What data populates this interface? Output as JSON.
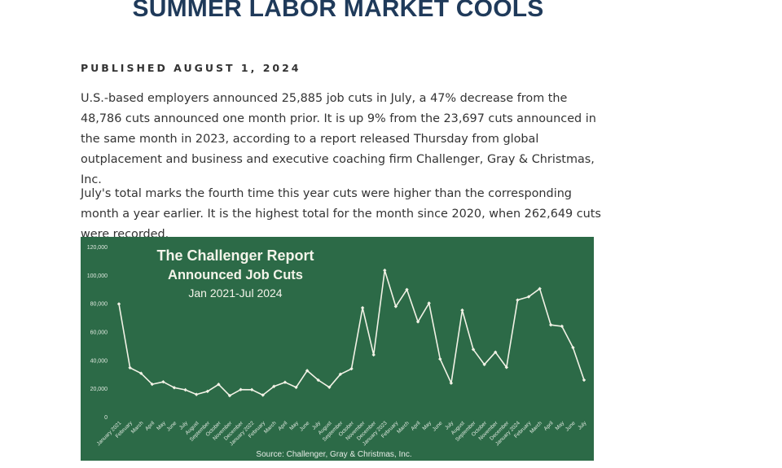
{
  "article": {
    "headline": "SUMMER LABOR MARKET COOLS",
    "dateline": "PUBLISHED AUGUST 1, 2024",
    "paragraphs": [
      "U.S.-based employers announced 25,885 job cuts in July, a 47% decrease from the 48,786 cuts announced one month prior. It is up 9% from the 23,697 cuts announced in the same month in 2023, according to a report released Thursday from global outplacement and business and executive coaching firm Challenger, Gray & Christmas, Inc.",
      "July's total marks the fourth time this year cuts were higher than the corresponding month a year earlier. It is the highest total for the month since 2020, when 262,649 cuts were recorded."
    ]
  },
  "chart_data": {
    "type": "line",
    "title": "The Challenger Report",
    "subtitle": "Announced Job Cuts",
    "period": "Jan 2021-Jul 2024",
    "source": "Source: Challenger, Gray & Christmas, Inc.",
    "background_color": "#2c6a47",
    "line_color": "#f2f2e6",
    "ylim": [
      0,
      120000
    ],
    "y_ticks": [
      "0",
      "20,000",
      "40,000",
      "60,000",
      "80,000",
      "100,000",
      "120,000"
    ],
    "y_tick_values": [
      0,
      20000,
      40000,
      60000,
      80000,
      100000,
      120000
    ],
    "grid": false,
    "legend": "none",
    "x": [
      "January 2021",
      "February",
      "March",
      "April",
      "May",
      "June",
      "July",
      "August",
      "September",
      "October",
      "November",
      "December",
      "January 2022",
      "February",
      "March",
      "April",
      "May",
      "June",
      "July",
      "August",
      "September",
      "October",
      "November",
      "December",
      "January 2023",
      "February",
      "March",
      "April",
      "May",
      "June",
      "July",
      "August",
      "September",
      "October",
      "November",
      "December",
      "January 2024",
      "February",
      "March",
      "April",
      "May",
      "June",
      "July"
    ],
    "series": [
      {
        "values": [
          79552,
          34531,
          30603,
          22913,
          24586,
          20476,
          18942,
          15723,
          17895,
          22822,
          14875,
          19141,
          19064,
          15245,
          21387,
          24286,
          20712,
          32517,
          25810,
          20781,
          29989,
          33843,
          76835,
          43651,
          103311,
          77770,
          89703,
          66995,
          80089,
          40709,
          23697,
          75151,
          47457,
          36836,
          45510,
          34817,
          82307,
          84638,
          90309,
          64789,
          63816,
          48786,
          25885
        ]
      }
    ]
  }
}
